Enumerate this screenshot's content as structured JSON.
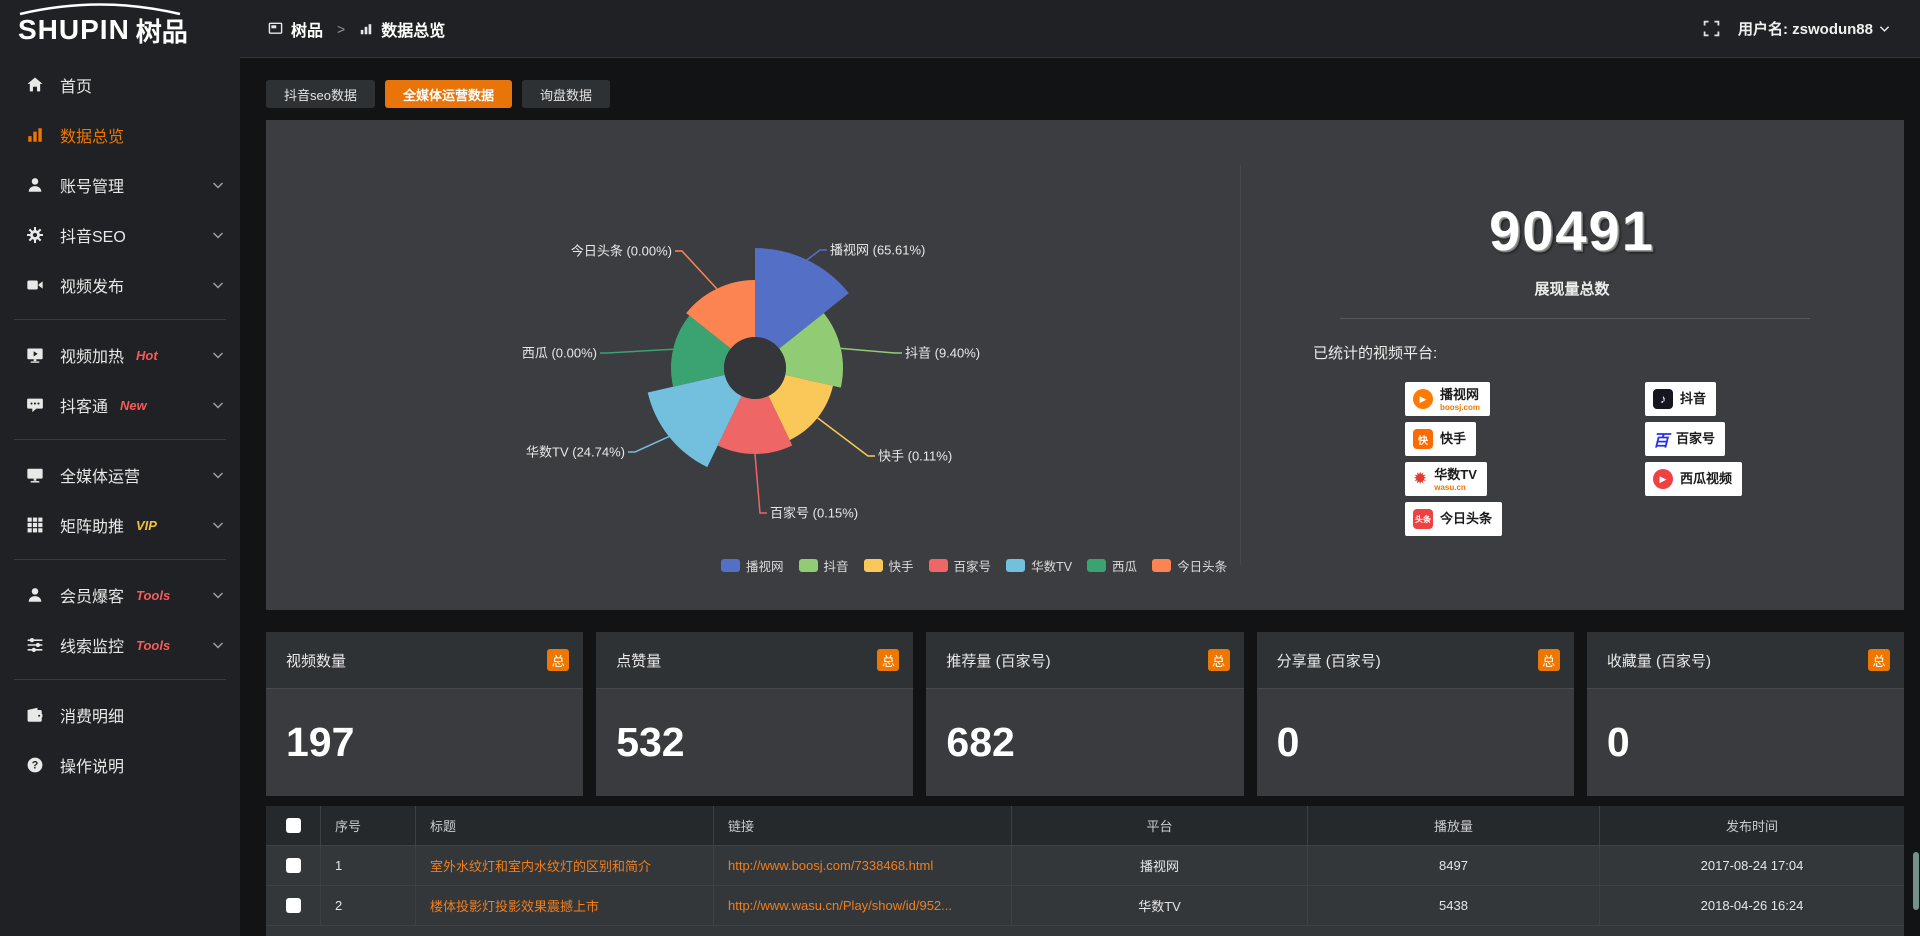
{
  "sidebar": {
    "logo_main": "SHUPIN",
    "logo_suffix": "树品",
    "groups": [
      [
        {
          "label": "首页",
          "icon": "home-icon"
        },
        {
          "label": "数据总览",
          "icon": "bar-chart-icon",
          "active": true
        },
        {
          "label": "账号管理",
          "icon": "user-icon",
          "chevron": true
        },
        {
          "label": "抖音SEO",
          "icon": "gear-icon",
          "chevron": true
        },
        {
          "label": "视频发布",
          "icon": "video-icon",
          "chevron": true
        }
      ],
      [
        {
          "label": "视频加热",
          "icon": "screen-play-icon",
          "badge": "Hot",
          "badge_color": "#f65a5a",
          "chevron": true
        },
        {
          "label": "抖客通",
          "icon": "chat-icon",
          "badge": "New",
          "badge_color": "#f65a5a",
          "chevron": true
        }
      ],
      [
        {
          "label": "全媒体运营",
          "icon": "monitor-icon",
          "chevron": true
        },
        {
          "label": "矩阵助推",
          "icon": "grid-icon",
          "badge": "VIP",
          "badge_color": "#f0c040",
          "chevron": true
        }
      ],
      [
        {
          "label": "会员爆客",
          "icon": "member-icon",
          "badge": "Tools",
          "badge_color": "#f65a5a",
          "chevron": true
        },
        {
          "label": "线索监控",
          "icon": "sliders-icon",
          "badge": "Tools",
          "badge_color": "#f65a5a",
          "chevron": true
        }
      ],
      [
        {
          "label": "消费明细",
          "icon": "wallet-icon"
        },
        {
          "label": "操作说明",
          "icon": "help-icon"
        }
      ]
    ]
  },
  "topbar": {
    "breadcrumb": {
      "app": "树品",
      "separator": ">",
      "page": "数据总览"
    },
    "username_label": "用户名: zswodun88"
  },
  "tabs": [
    {
      "label": "抖音seo数据",
      "active": false
    },
    {
      "label": "全媒体运营数据",
      "active": true
    },
    {
      "label": "询盘数据",
      "active": false
    }
  ],
  "chart_data": {
    "type": "pie",
    "style": "nightingale-rose",
    "label_format": "{name} ({percent}%)",
    "legend_position": "bottom",
    "items": [
      {
        "name": "播视网",
        "percent": "65.61",
        "color": "#5470c6"
      },
      {
        "name": "抖音",
        "percent": "9.40",
        "color": "#91cc75"
      },
      {
        "name": "快手",
        "percent": "0.11",
        "color": "#fac858"
      },
      {
        "name": "百家号",
        "percent": "0.15",
        "color": "#ee6666"
      },
      {
        "name": "华数TV",
        "percent": "24.74",
        "color": "#73c0de"
      },
      {
        "name": "西瓜",
        "percent": "0.00",
        "color": "#3ba272"
      },
      {
        "name": "今日头条",
        "percent": "0.00",
        "color": "#fc8452"
      }
    ],
    "total": {
      "value": "90491",
      "label": "展现量总数"
    }
  },
  "platform_panel": {
    "heading": "已统计的视频平台:",
    "left": [
      {
        "name": "播视网",
        "sub": "boosj.com",
        "icon": "boosj-logo"
      },
      {
        "name": "快手",
        "icon": "kuaishou-logo"
      },
      {
        "name": "华数TV",
        "sub": "wasu.cn",
        "icon": "wasu-logo"
      },
      {
        "name": "今日头条",
        "icon": "toutiao-logo"
      }
    ],
    "right": [
      {
        "name": "抖音",
        "icon": "douyin-logo"
      },
      {
        "name": "百家号",
        "icon": "baijiahao-logo"
      },
      {
        "name": "西瓜视频",
        "icon": "xigua-logo"
      }
    ]
  },
  "stat_cards": [
    {
      "title": "视频数量",
      "badge": "总",
      "value": "197"
    },
    {
      "title": "点赞量",
      "badge": "总",
      "value": "532"
    },
    {
      "title": "推荐量 (百家号)",
      "badge": "总",
      "value": "682"
    },
    {
      "title": "分享量 (百家号)",
      "badge": "总",
      "value": "0"
    },
    {
      "title": "收藏量 (百家号)",
      "badge": "总",
      "value": "0"
    }
  ],
  "table": {
    "headers": [
      "序号",
      "标题",
      "链接",
      "平台",
      "播放量",
      "发布时间"
    ],
    "rows": [
      {
        "seq": "1",
        "title": "室外水纹灯和室内水纹灯的区别和简介",
        "link": "http://www.boosj.com/7338468.html",
        "platform": "播视网",
        "plays": "8497",
        "published": "2017-08-24 17:04"
      },
      {
        "seq": "2",
        "title": "楼体投影灯投影效果震撼上市",
        "link": "http://www.wasu.cn/Play/show/id/952...",
        "platform": "华数TV",
        "plays": "5438",
        "published": "2018-04-26 16:24"
      }
    ]
  },
  "colors": {
    "accent": "#ee7702",
    "hot_badge": "#f65a5a",
    "vip_badge": "#f0c040",
    "link": "#ef7f1f"
  }
}
